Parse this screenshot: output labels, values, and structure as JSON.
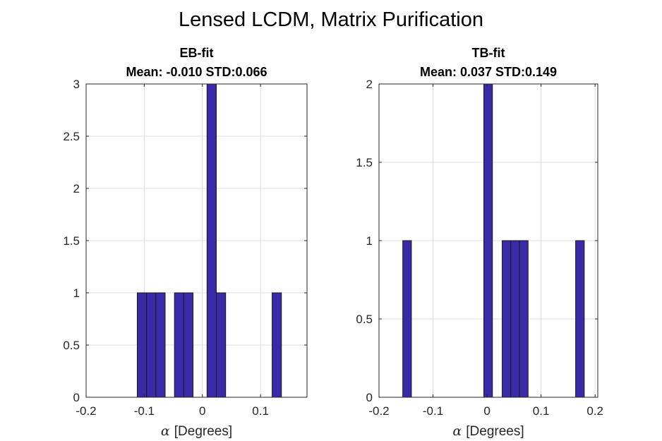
{
  "figure": {
    "title": "Lensed LCDM, Matrix Purification"
  },
  "chart_data": [
    {
      "type": "bar",
      "title": "EB-fit",
      "subtitle": "Mean: -0.010 STD:0.066",
      "xlabel_symbol": "α",
      "xlabel_text": "[Degrees]",
      "ylabel": "",
      "xlim": [
        -0.2,
        0.18
      ],
      "ylim": [
        0,
        3
      ],
      "xticks": [
        -0.2,
        -0.1,
        0,
        0.1
      ],
      "xtick_labels": [
        "-0.2",
        "-0.1",
        "0",
        "0.1"
      ],
      "yticks": [
        0,
        0.5,
        1,
        1.5,
        2,
        2.5,
        3
      ],
      "ytick_labels": [
        "0",
        "0.5",
        "1",
        "1.5",
        "2",
        "2.5",
        "3"
      ],
      "grid": true,
      "bar_color": "#3a2aa8",
      "bin_width": 0.016,
      "bins": [
        {
          "x": -0.104,
          "count": 1
        },
        {
          "x": -0.088,
          "count": 1
        },
        {
          "x": -0.072,
          "count": 1
        },
        {
          "x": -0.04,
          "count": 1
        },
        {
          "x": -0.024,
          "count": 1
        },
        {
          "x": 0.016,
          "count": 3
        },
        {
          "x": 0.032,
          "count": 1
        },
        {
          "x": 0.128,
          "count": 1
        }
      ]
    },
    {
      "type": "bar",
      "title": "TB-fit",
      "subtitle": "Mean: 0.037 STD:0.149",
      "xlabel_symbol": "α",
      "xlabel_text": "[Degrees]",
      "ylabel": "",
      "xlim": [
        -0.2,
        0.205
      ],
      "ylim": [
        0,
        2
      ],
      "xticks": [
        -0.2,
        -0.1,
        0,
        0.1,
        0.2
      ],
      "xtick_labels": [
        "-0.2",
        "-0.1",
        "0",
        "0.1",
        "0.2"
      ],
      "yticks": [
        0,
        0.5,
        1,
        1.5,
        2
      ],
      "ytick_labels": [
        "0",
        "0.5",
        "1",
        "1.5",
        "2"
      ],
      "grid": true,
      "bar_color": "#3a2aa8",
      "bin_width": 0.016,
      "bins": [
        {
          "x": -0.148,
          "count": 1
        },
        {
          "x": 0.002,
          "count": 2
        },
        {
          "x": 0.036,
          "count": 1
        },
        {
          "x": 0.052,
          "count": 1
        },
        {
          "x": 0.068,
          "count": 1
        },
        {
          "x": 0.172,
          "count": 1
        }
      ]
    }
  ]
}
